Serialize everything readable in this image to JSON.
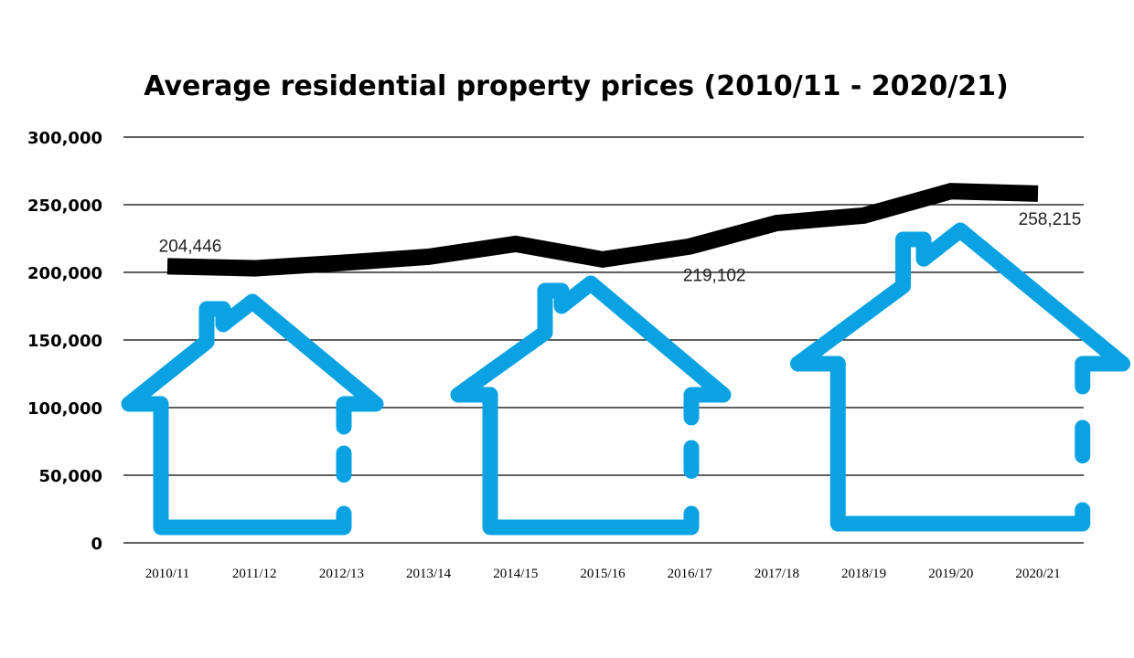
{
  "chart_data": {
    "type": "line",
    "title": "Average residential property prices (2010/11 - 2020/21)",
    "xlabel": "",
    "ylabel": "",
    "categories": [
      "2010/11",
      "2011/12",
      "2012/13",
      "2013/14",
      "2014/15",
      "2015/16",
      "2016/17",
      "2017/18",
      "2018/19",
      "2019/20",
      "2020/21"
    ],
    "series": [
      {
        "values": [
          204446,
          203000,
          207000,
          211500,
          221000,
          209500,
          219102,
          236500,
          242000,
          260000,
          258215
        ]
      }
    ],
    "data_labels": [
      {
        "index": 0,
        "text": "204,446"
      },
      {
        "index": 6,
        "text": "219,102"
      },
      {
        "index": 10,
        "text": "258,215"
      }
    ],
    "ylim": [
      0,
      300000
    ],
    "yticks": [
      0,
      50000,
      100000,
      150000,
      200000,
      250000,
      300000
    ],
    "ytick_labels": [
      "0",
      "50,000",
      "100,000",
      "150,000",
      "200,000",
      "250,000",
      "300,000"
    ],
    "grid": true,
    "legend": "none",
    "colors": {
      "line": "#000000",
      "house_icons": "#0aa2e3",
      "grid": "#000000"
    },
    "decorations": [
      "house-icon",
      "house-icon",
      "house-icon"
    ]
  }
}
